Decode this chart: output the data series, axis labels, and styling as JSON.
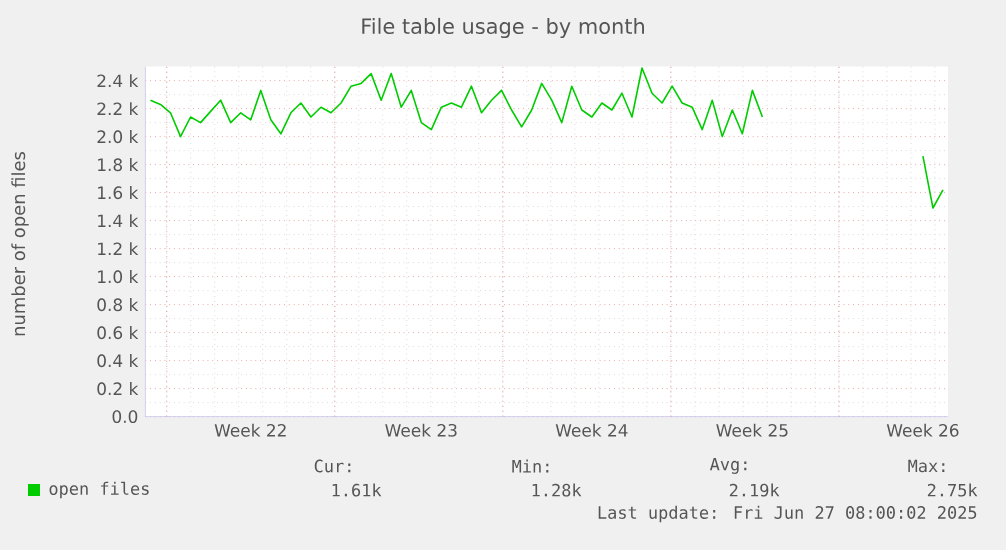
{
  "chart_data": {
    "type": "line",
    "title": "File table usage - by month",
    "ylabel": "number of open files",
    "categories": [
      null,
      null,
      null,
      null,
      null,
      null,
      null,
      null,
      null,
      null,
      "Week 22",
      null,
      null,
      null,
      null,
      null,
      null,
      null,
      null,
      null,
      null,
      null,
      null,
      null,
      null,
      null,
      null,
      "Week 23",
      null,
      null,
      null,
      null,
      null,
      null,
      null,
      null,
      null,
      null,
      null,
      null,
      null,
      null,
      null,
      null,
      "Week 24",
      null,
      null,
      null,
      null,
      null,
      null,
      null,
      null,
      null,
      null,
      null,
      null,
      null,
      null,
      null,
      "Week 25",
      null,
      null,
      null,
      null,
      null,
      null,
      null,
      null,
      null,
      null,
      null,
      null,
      null,
      null,
      null,
      null,
      "Week 26",
      null,
      null
    ],
    "ylim": [
      0,
      2500
    ],
    "yticks": [
      {
        "value": 0,
        "label": "0.0"
      },
      {
        "value": 200,
        "label": "0.2 k"
      },
      {
        "value": 400,
        "label": "0.4 k"
      },
      {
        "value": 600,
        "label": "0.6 k"
      },
      {
        "value": 800,
        "label": "0.8 k"
      },
      {
        "value": 1000,
        "label": "1.0 k"
      },
      {
        "value": 1200,
        "label": "1.2 k"
      },
      {
        "value": 1400,
        "label": "1.4 k"
      },
      {
        "value": 1600,
        "label": "1.6 k"
      },
      {
        "value": 1800,
        "label": "1.8 k"
      },
      {
        "value": 2000,
        "label": "2.0 k"
      },
      {
        "value": 2200,
        "label": "2.2 k"
      },
      {
        "value": 2400,
        "label": "2.4 k"
      }
    ],
    "grid": true,
    "legend": "bottom left",
    "series": [
      {
        "name": "open files",
        "color": "#00cc00",
        "values": [
          2260,
          2230,
          2170,
          2000,
          2140,
          2100,
          2180,
          2260,
          2100,
          2170,
          2120,
          2330,
          2120,
          2020,
          2170,
          2240,
          2140,
          2210,
          2170,
          2240,
          2360,
          2380,
          2450,
          2260,
          2450,
          2210,
          2330,
          2100,
          2050,
          2210,
          2240,
          2210,
          2360,
          2170,
          2260,
          2330,
          2190,
          2070,
          2190,
          2380,
          2260,
          2100,
          2360,
          2190,
          2140,
          2240,
          2190,
          2310,
          2140,
          2490,
          2310,
          2240,
          2360,
          2240,
          2210,
          2050,
          2260,
          2000,
          2190,
          2020,
          2330,
          2140,
          null,
          null,
          null,
          null,
          null,
          null,
          null,
          null,
          null,
          null,
          null,
          null,
          null,
          null,
          null,
          1860,
          1490,
          1620
        ]
      }
    ],
    "annotations": [
      "Cur:",
      "Min:",
      "Avg:",
      "Max:",
      "1.61k",
      "1.28k",
      "2.19k",
      "2.75k",
      "Last update: Fri Jun 27 08:00:02 2025"
    ]
  }
}
